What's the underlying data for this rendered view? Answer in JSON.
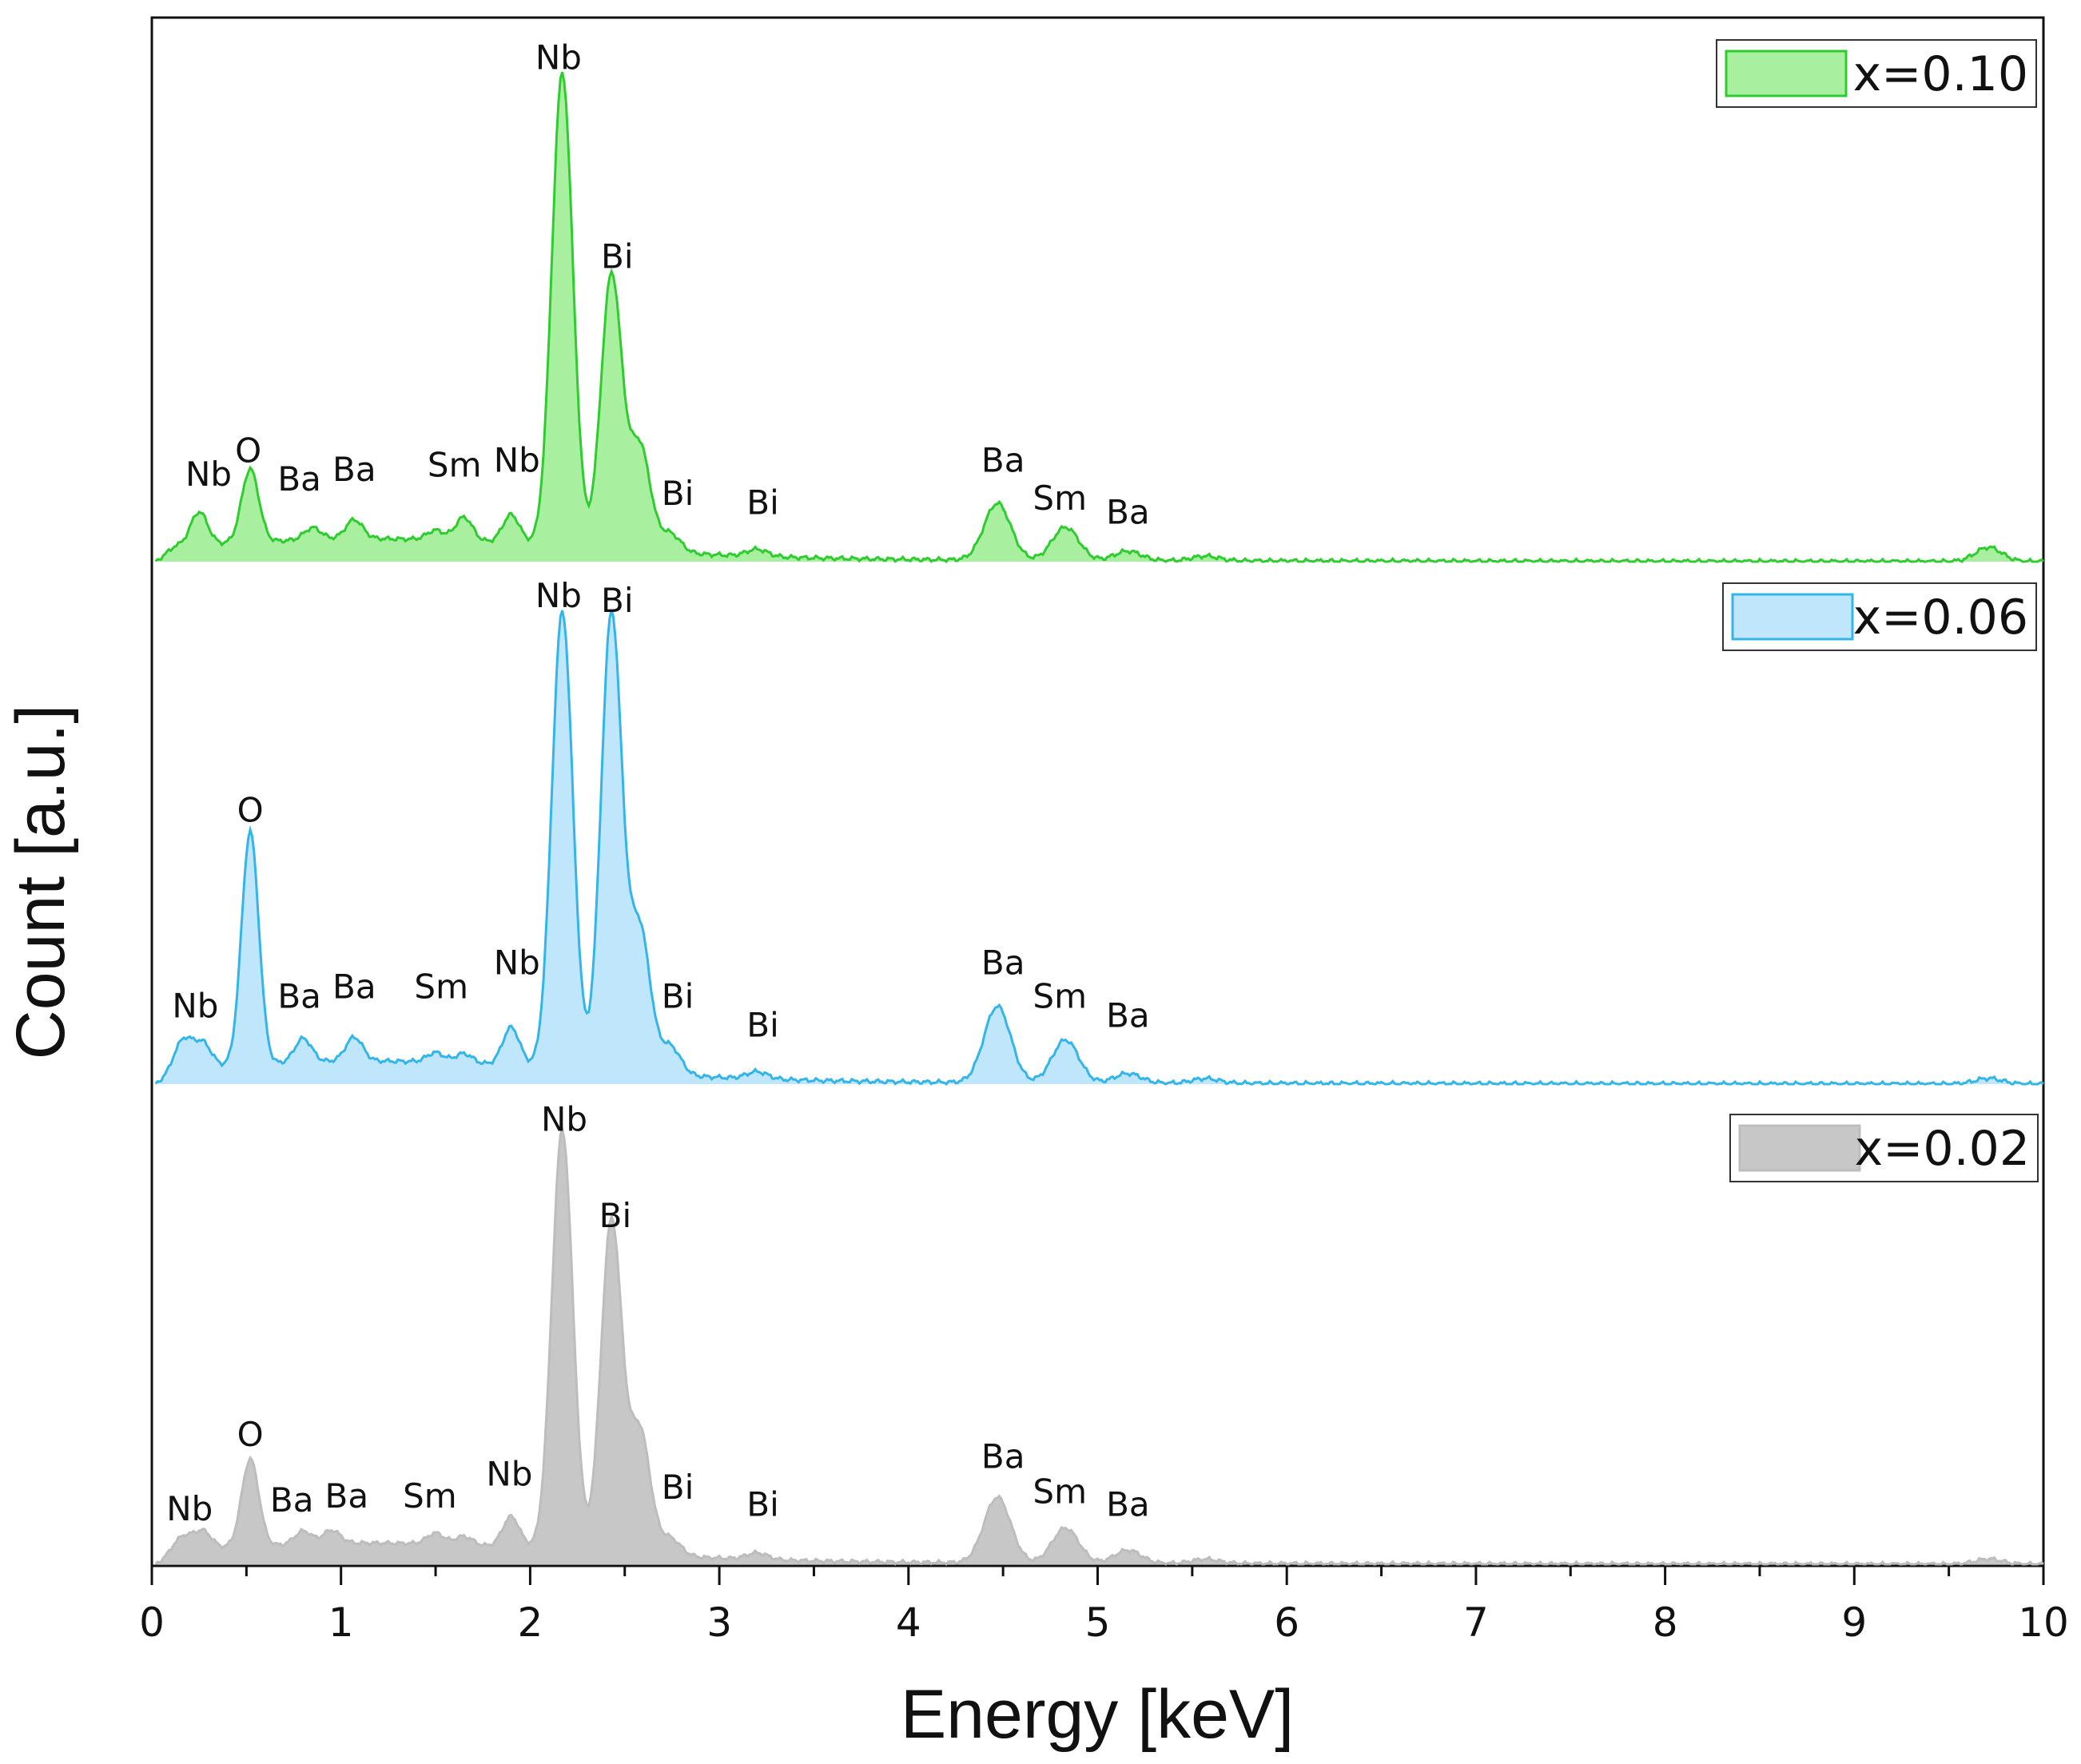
{
  "chart_data": {
    "type": "area",
    "title": "",
    "xlabel": "Energy [keV]",
    "ylabel": "Count [a.u.]",
    "xlim": [
      0,
      10
    ],
    "x_ticks": [
      "0",
      "1",
      "2",
      "3",
      "4",
      "5",
      "6",
      "7",
      "8",
      "9",
      "10"
    ],
    "y_ticks": [],
    "grid": false,
    "layout": "three stacked panels sharing x axis",
    "series": [
      {
        "name": "x=0.10",
        "line_color": "#2ecc2e",
        "fill_color": "#a8f0a0",
        "peaks_kev": [
          {
            "x": 0.25,
            "h": 0.07
          },
          {
            "x": 0.52,
            "h": 0.155
          },
          {
            "x": 0.85,
            "h": 0.025
          },
          {
            "x": 1.07,
            "h": 0.04
          },
          {
            "x": 1.5,
            "h": 0.02
          },
          {
            "x": 1.65,
            "h": 0.05
          },
          {
            "x": 1.9,
            "h": 0.06
          },
          {
            "x": 2.17,
            "h": 1.0
          },
          {
            "x": 2.43,
            "h": 0.58
          },
          {
            "x": 2.58,
            "h": 0.22
          },
          {
            "x": 2.74,
            "h": 0.04
          },
          {
            "x": 3.2,
            "h": 0.015
          },
          {
            "x": 4.47,
            "h": 0.12
          },
          {
            "x": 4.83,
            "h": 0.07
          },
          {
            "x": 5.16,
            "h": 0.02
          },
          {
            "x": 5.57,
            "h": 0.01
          },
          {
            "x": 9.71,
            "h": 0.03
          }
        ],
        "peak_labels": [
          {
            "text": "Nb",
            "x": 0.3,
            "y": 0.16
          },
          {
            "text": "O",
            "x": 0.51,
            "y": 0.21
          },
          {
            "text": "Ba",
            "x": 0.78,
            "y": 0.15
          },
          {
            "text": "Ba",
            "x": 1.07,
            "y": 0.17
          },
          {
            "text": "Sm",
            "x": 1.6,
            "y": 0.18
          },
          {
            "text": "Nb",
            "x": 1.93,
            "y": 0.19
          },
          {
            "text": "Nb",
            "x": 2.15,
            "y": 1.04
          },
          {
            "text": "Bi",
            "x": 2.46,
            "y": 0.62
          },
          {
            "text": "Bi",
            "x": 2.78,
            "y": 0.12
          },
          {
            "text": "Bi",
            "x": 3.23,
            "y": 0.1
          },
          {
            "text": "Ba",
            "x": 4.5,
            "y": 0.19
          },
          {
            "text": "Sm",
            "x": 4.8,
            "y": 0.11
          },
          {
            "text": "Ba",
            "x": 5.16,
            "y": 0.08
          }
        ]
      },
      {
        "name": "x=0.06",
        "line_color": "#33b5ea",
        "fill_color": "#bfe6fa",
        "peaks_kev": [
          {
            "x": 0.17,
            "h": 0.06
          },
          {
            "x": 0.27,
            "h": 0.05
          },
          {
            "x": 0.52,
            "h": 0.49
          },
          {
            "x": 0.8,
            "h": 0.05
          },
          {
            "x": 1.07,
            "h": 0.05
          },
          {
            "x": 1.5,
            "h": 0.02
          },
          {
            "x": 1.65,
            "h": 0.02
          },
          {
            "x": 1.9,
            "h": 0.08
          },
          {
            "x": 2.17,
            "h": 0.96
          },
          {
            "x": 2.43,
            "h": 0.96
          },
          {
            "x": 2.58,
            "h": 0.3
          },
          {
            "x": 2.74,
            "h": 0.06
          },
          {
            "x": 3.2,
            "h": 0.015
          },
          {
            "x": 4.47,
            "h": 0.16
          },
          {
            "x": 4.83,
            "h": 0.09
          },
          {
            "x": 5.16,
            "h": 0.02
          },
          {
            "x": 5.57,
            "h": 0.01
          },
          {
            "x": 9.71,
            "h": 0.012
          }
        ],
        "peak_labels": [
          {
            "text": "Nb",
            "x": 0.23,
            "y": 0.14
          },
          {
            "text": "O",
            "x": 0.52,
            "y": 0.55
          },
          {
            "text": "Ba",
            "x": 0.78,
            "y": 0.16
          },
          {
            "text": "Ba",
            "x": 1.07,
            "y": 0.18
          },
          {
            "text": "Sm",
            "x": 1.53,
            "y": 0.18
          },
          {
            "text": "Nb",
            "x": 1.93,
            "y": 0.23
          },
          {
            "text": "Nb",
            "x": 2.15,
            "y": 1.0
          },
          {
            "text": "Bi",
            "x": 2.46,
            "y": 0.99
          },
          {
            "text": "Bi",
            "x": 2.78,
            "y": 0.16
          },
          {
            "text": "Bi",
            "x": 3.23,
            "y": 0.1
          },
          {
            "text": "Ba",
            "x": 4.5,
            "y": 0.23
          },
          {
            "text": "Sm",
            "x": 4.8,
            "y": 0.16
          },
          {
            "text": "Ba",
            "x": 5.16,
            "y": 0.12
          }
        ]
      },
      {
        "name": "x=0.02",
        "line_color": "#bdbdbd",
        "fill_color": "#c7c7c7",
        "peaks_kev": [
          {
            "x": 0.17,
            "h": 0.03
          },
          {
            "x": 0.27,
            "h": 0.04
          },
          {
            "x": 0.52,
            "h": 0.2
          },
          {
            "x": 0.8,
            "h": 0.03
          },
          {
            "x": 0.95,
            "h": 0.03
          },
          {
            "x": 1.5,
            "h": 0.025
          },
          {
            "x": 1.65,
            "h": 0.02
          },
          {
            "x": 1.9,
            "h": 0.07
          },
          {
            "x": 2.17,
            "h": 0.96
          },
          {
            "x": 2.43,
            "h": 0.76
          },
          {
            "x": 2.58,
            "h": 0.28
          },
          {
            "x": 2.74,
            "h": 0.04
          },
          {
            "x": 3.2,
            "h": 0.015
          },
          {
            "x": 4.47,
            "h": 0.15
          },
          {
            "x": 4.83,
            "h": 0.08
          },
          {
            "x": 5.16,
            "h": 0.03
          },
          {
            "x": 5.57,
            "h": 0.01
          },
          {
            "x": 9.71,
            "h": 0.012
          }
        ],
        "peak_labels": [
          {
            "text": "Nb",
            "x": 0.2,
            "y": 0.1
          },
          {
            "text": "O",
            "x": 0.52,
            "y": 0.27
          },
          {
            "text": "Ba",
            "x": 0.74,
            "y": 0.12
          },
          {
            "text": "Ba",
            "x": 1.03,
            "y": 0.13
          },
          {
            "text": "Sm",
            "x": 1.47,
            "y": 0.13
          },
          {
            "text": "Nb",
            "x": 1.89,
            "y": 0.18
          },
          {
            "text": "Nb",
            "x": 2.18,
            "y": 0.99
          },
          {
            "text": "Bi",
            "x": 2.45,
            "y": 0.77
          },
          {
            "text": "Bi",
            "x": 2.78,
            "y": 0.15
          },
          {
            "text": "Bi",
            "x": 3.23,
            "y": 0.11
          },
          {
            "text": "Ba",
            "x": 4.5,
            "y": 0.22
          },
          {
            "text": "Sm",
            "x": 4.8,
            "y": 0.14
          },
          {
            "text": "Ba",
            "x": 5.16,
            "y": 0.11
          }
        ]
      }
    ]
  }
}
